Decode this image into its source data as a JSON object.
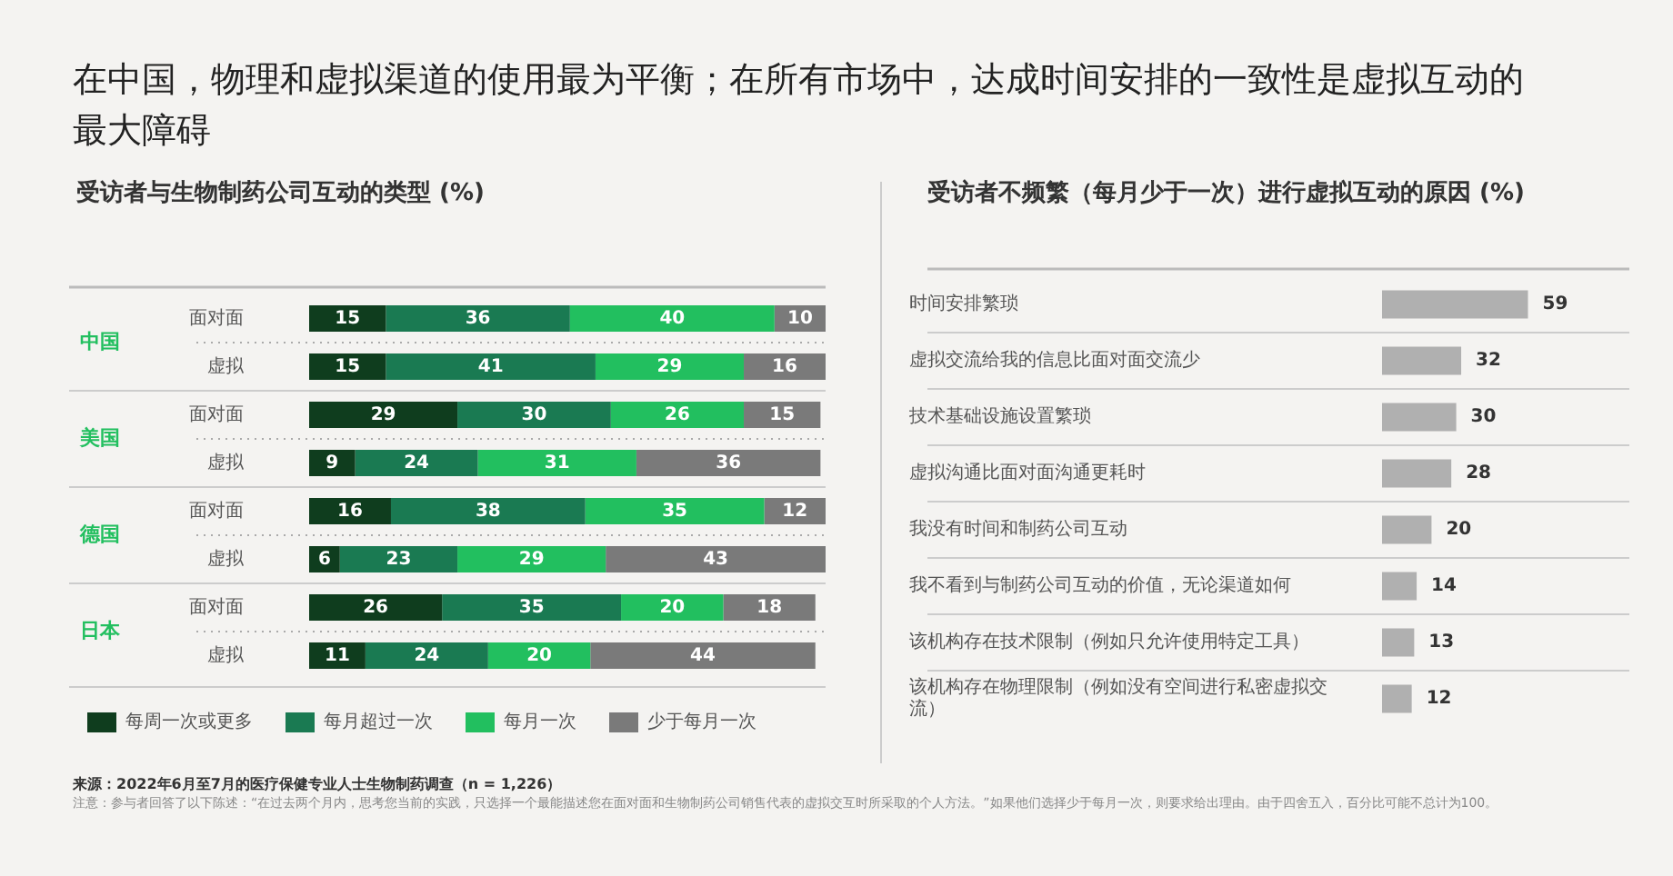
{
  "chart_data": [
    {
      "type": "bar",
      "orientation": "horizontal",
      "stacked": true,
      "data_labels": true,
      "legend": "bottom",
      "title": "在中国，物理和虚拟渠道的使用最为平衡；在所有市场中，达成时间安排的一致性是虚拟互动的最大障碍",
      "subtitle": "受访者与生物制药公司互动的类型 (%)",
      "categories": [
        "面对面",
        "虚拟",
        "面对面",
        "虚拟",
        "面对面",
        "虚拟",
        "面对面",
        "虚拟"
      ],
      "series": [
        {
          "name": "每周一次或更多",
          "color": "#0f3d1e",
          "values": [
            15,
            15,
            29,
            9,
            16,
            6,
            26,
            11
          ]
        },
        {
          "name": "每月超过一次",
          "color": "#1a7a52",
          "values": [
            36,
            41,
            30,
            24,
            38,
            23,
            35,
            24
          ]
        },
        {
          "name": "每月一次",
          "color": "#22bf5f",
          "values": [
            40,
            29,
            26,
            31,
            35,
            29,
            20,
            20
          ]
        },
        {
          "name": "少于每月一次",
          "color": "#7a7a7a",
          "values": [
            10,
            16,
            15,
            36,
            12,
            43,
            18,
            44
          ]
        }
      ],
      "annotations": [
        "中国",
        "美国",
        "德国",
        "日本",
        "来源：2022年6月至7月的医疗保健专业人士生物制药调查（n = 1,226）",
        "注意：参与者回答了以下陈述：“在过去两个月内，思考您当前的实践，只选择一个最能描述您在面对面和生物制药公司销售代表的虚拟交互时所采取的个人方法。”如果他们选择少于每月一次，则要求给出理由。由于四舍五入，百分比可能不总计为100。"
      ]
    },
    {
      "type": "bar",
      "orientation": "horizontal",
      "data_labels": true,
      "title": "受访者不频繁（每月少于一次）进行虚拟互动的原因 (%)",
      "categories": [
        "时间安排繁琐",
        "虚拟交流给我的信息比面对面交流少",
        "技术基础设施设置繁琐",
        "虚拟沟通比面对面沟通更耗时",
        "我没有时间和制药公司互动",
        "我不看到与制药公司互动的价值，无论渠道如何",
        "该机构存在技术限制（例如只允许使用特定工具）",
        "该机构存在物理限制（例如没有空间进行私密虚拟交流）"
      ],
      "values": [
        59,
        32,
        30,
        28,
        20,
        14,
        13,
        12
      ],
      "color": "#b0b0b0"
    }
  ]
}
